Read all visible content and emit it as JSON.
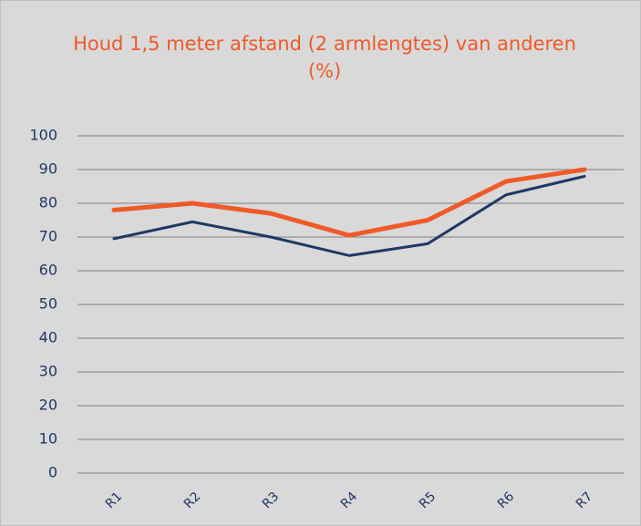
{
  "chart_data": {
    "type": "line",
    "title": "Houd 1,5 meter afstand (2 armlengtes) van anderen (%)",
    "categories": [
      "R1",
      "R2",
      "R3",
      "R4",
      "R5",
      "R6",
      "R7"
    ],
    "series": [
      {
        "color": "#1f3864",
        "values": [
          69.5,
          74.5,
          70,
          64.5,
          68,
          82.5,
          88
        ]
      },
      {
        "color": "#f05a28",
        "values": [
          78,
          80,
          77,
          70.5,
          75,
          86.5,
          90
        ]
      }
    ],
    "ylim": [
      0,
      100
    ],
    "yticks": [
      0,
      10,
      20,
      30,
      40,
      50,
      60,
      70,
      80,
      90,
      100
    ],
    "grid": true
  }
}
